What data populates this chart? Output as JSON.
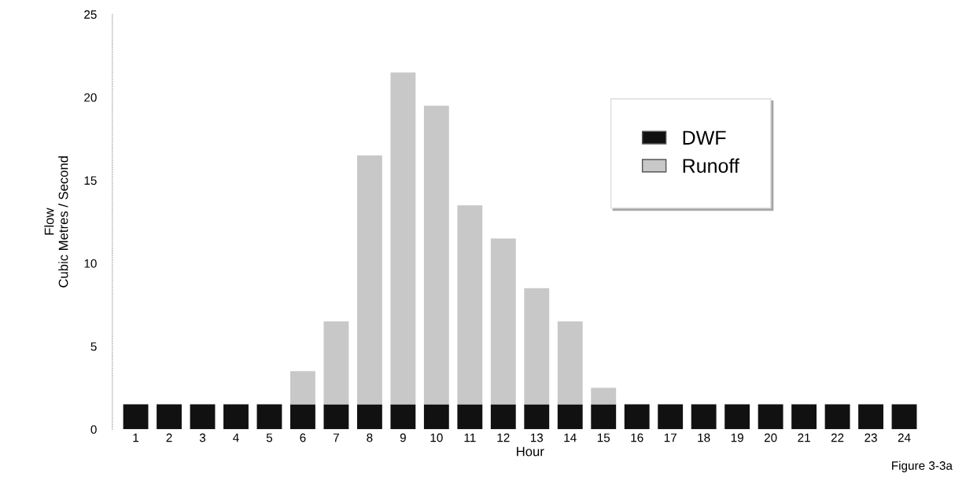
{
  "chart_data": {
    "type": "bar",
    "stacked": true,
    "xlabel": "Hour",
    "ylabel": "Flow\nCubic Metres / Second",
    "categories": [
      "1",
      "2",
      "3",
      "4",
      "5",
      "6",
      "7",
      "8",
      "9",
      "10",
      "11",
      "12",
      "13",
      "14",
      "15",
      "16",
      "17",
      "18",
      "19",
      "20",
      "21",
      "22",
      "23",
      "24"
    ],
    "series": [
      {
        "name": "DWF",
        "color": "#111111",
        "values": [
          1.5,
          1.5,
          1.5,
          1.5,
          1.5,
          1.5,
          1.5,
          1.5,
          1.5,
          1.5,
          1.5,
          1.5,
          1.5,
          1.5,
          1.5,
          1.5,
          1.5,
          1.5,
          1.5,
          1.5,
          1.5,
          1.5,
          1.5,
          1.5
        ]
      },
      {
        "name": "Runoff",
        "color": "#c8c8c8",
        "values": [
          0,
          0,
          0,
          0,
          0,
          2,
          5,
          15,
          20,
          18,
          12,
          10,
          7,
          5,
          1,
          0,
          0,
          0,
          0,
          0,
          0,
          0,
          0,
          0
        ]
      }
    ],
    "ylim": [
      0,
      25
    ],
    "yticks": [
      0,
      5,
      10,
      15,
      20,
      25
    ],
    "grid": false,
    "legend": "top right",
    "annotations": [
      "Figure 3-3a"
    ]
  }
}
